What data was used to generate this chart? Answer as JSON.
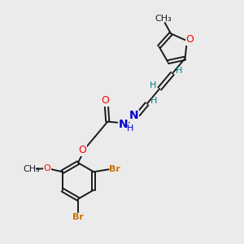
{
  "bg_color": "#ebebeb",
  "bond_color": "#1a1a1a",
  "O_color": "#ff0000",
  "N_color": "#0000cc",
  "Br_color": "#cc7000",
  "H_color": "#008080",
  "figsize": [
    3.0,
    3.0
  ],
  "dpi": 100,
  "xlim": [
    0,
    10
  ],
  "ylim": [
    0,
    10
  ]
}
